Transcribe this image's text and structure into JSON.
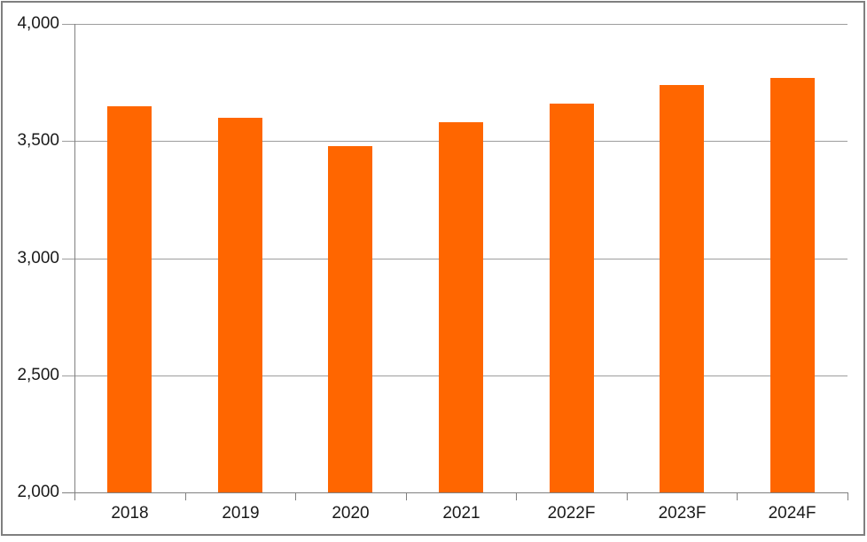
{
  "chart_data": {
    "type": "bar",
    "title": "",
    "xlabel": "",
    "ylabel": "",
    "categories": [
      "2018",
      "2019",
      "2020",
      "2021",
      "2022F",
      "2023F",
      "2024F"
    ],
    "values": [
      3650,
      3600,
      3480,
      3580,
      3660,
      3740,
      3770
    ],
    "ylim": [
      2000,
      4000
    ],
    "yticks": [
      {
        "value": 2000,
        "label": "2,000"
      },
      {
        "value": 2500,
        "label": "2,500"
      },
      {
        "value": 3000,
        "label": "3,000"
      },
      {
        "value": 3500,
        "label": "3,500"
      },
      {
        "value": 4000,
        "label": "4,000"
      }
    ],
    "grid": "horizontal",
    "legend": "none",
    "colors": {
      "bar": "#FF6600",
      "axis": "#808080",
      "gridline": "#9D9D9D",
      "label": "#1A1A1A",
      "frame_border": "#7F7F7F",
      "background": "#FFFFFF"
    }
  }
}
